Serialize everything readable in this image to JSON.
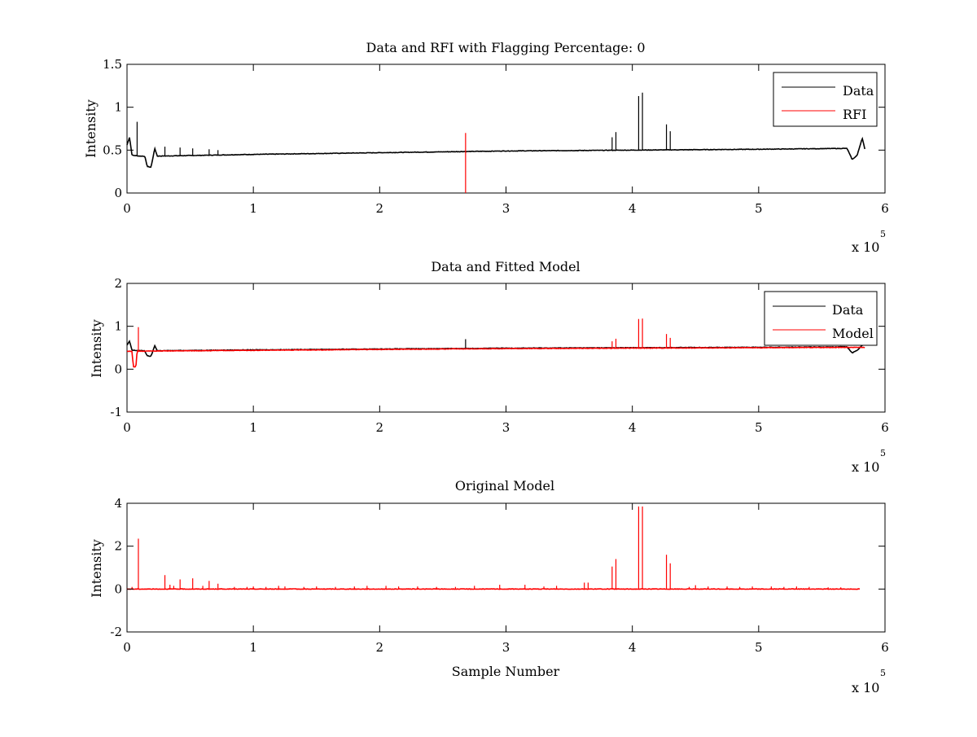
{
  "colors": {
    "data": "#000000",
    "rfi": "#ff0000",
    "model": "#ff0000"
  },
  "chart_data": [
    {
      "type": "line",
      "title": "Data and RFI with Flagging Percentage: 0",
      "xlabel": "",
      "ylabel": "Intensity",
      "xlim": [
        0,
        6
      ],
      "ylim": [
        0,
        1.5
      ],
      "x_multiplier": "x 10",
      "x_multiplier_exp": "5",
      "xticks": [
        "0",
        "1",
        "2",
        "3",
        "4",
        "5",
        "6"
      ],
      "yticks": [
        "0",
        "0.5",
        "1",
        "1.5"
      ],
      "grid": false,
      "legend_position": "top-right",
      "legend": [
        "Data",
        "RFI"
      ],
      "series": [
        {
          "name": "Data",
          "color": "#000000",
          "baseline": [
            [
              0,
              0.56
            ],
            [
              0.02,
              0.65
            ],
            [
              0.04,
              0.44
            ],
            [
              0.1,
              0.43
            ],
            [
              0.14,
              0.43
            ],
            [
              0.16,
              0.31
            ],
            [
              0.19,
              0.3
            ],
            [
              0.22,
              0.52
            ],
            [
              0.24,
              0.43
            ],
            [
              1,
              0.45
            ],
            [
              2,
              0.47
            ],
            [
              3,
              0.49
            ],
            [
              4,
              0.5
            ],
            [
              5,
              0.51
            ],
            [
              5.7,
              0.52
            ],
            [
              5.74,
              0.39
            ],
            [
              5.78,
              0.44
            ],
            [
              5.82,
              0.64
            ],
            [
              5.84,
              0.51
            ]
          ],
          "spikes": [
            [
              0.08,
              0.83
            ],
            [
              0.3,
              0.54
            ],
            [
              0.42,
              0.53
            ],
            [
              0.52,
              0.52
            ],
            [
              0.65,
              0.51
            ],
            [
              0.72,
              0.5
            ],
            [
              3.84,
              0.65
            ],
            [
              3.87,
              0.71
            ],
            [
              4.05,
              1.13
            ],
            [
              4.08,
              1.17
            ],
            [
              4.27,
              0.8
            ],
            [
              4.3,
              0.72
            ]
          ]
        },
        {
          "name": "RFI",
          "color": "#ff0000",
          "spikes": [
            [
              2.68,
              0.7
            ]
          ]
        }
      ]
    },
    {
      "type": "line",
      "title": "Data and Fitted Model",
      "xlabel": "",
      "ylabel": "Intensity",
      "xlim": [
        0,
        6
      ],
      "ylim": [
        -1,
        2
      ],
      "x_multiplier": "x 10",
      "x_multiplier_exp": "5",
      "xticks": [
        "0",
        "1",
        "2",
        "3",
        "4",
        "5",
        "6"
      ],
      "yticks": [
        "-1",
        "0",
        "1",
        "2"
      ],
      "grid": false,
      "legend_position": "top-right",
      "legend": [
        "Data",
        "Model"
      ],
      "series": [
        {
          "name": "Data",
          "color": "#000000",
          "baseline": [
            [
              0,
              0.56
            ],
            [
              0.02,
              0.65
            ],
            [
              0.04,
              0.44
            ],
            [
              0.14,
              0.43
            ],
            [
              0.16,
              0.31
            ],
            [
              0.19,
              0.3
            ],
            [
              0.22,
              0.55
            ],
            [
              0.24,
              0.43
            ],
            [
              1,
              0.45
            ],
            [
              2,
              0.47
            ],
            [
              3,
              0.49
            ],
            [
              4,
              0.5
            ],
            [
              5,
              0.51
            ],
            [
              5.7,
              0.52
            ],
            [
              5.74,
              0.38
            ],
            [
              5.78,
              0.44
            ],
            [
              5.82,
              0.56
            ]
          ],
          "spikes": [
            [
              2.68,
              0.7
            ]
          ]
        },
        {
          "name": "Model",
          "color": "#ff0000",
          "baseline": [
            [
              0,
              0.42
            ],
            [
              0.04,
              0.42
            ],
            [
              0.05,
              0.05
            ],
            [
              0.07,
              0.05
            ],
            [
              0.08,
              0.42
            ],
            [
              1,
              0.44
            ],
            [
              2,
              0.46
            ],
            [
              3,
              0.48
            ],
            [
              4,
              0.49
            ],
            [
              5,
              0.5
            ],
            [
              5.84,
              0.51
            ]
          ],
          "spikes": [
            [
              0.09,
              0.98
            ],
            [
              3.84,
              0.65
            ],
            [
              3.87,
              0.71
            ],
            [
              4.05,
              1.17
            ],
            [
              4.08,
              1.18
            ],
            [
              4.27,
              0.82
            ],
            [
              4.3,
              0.73
            ]
          ]
        }
      ]
    },
    {
      "type": "line",
      "title": "Original Model",
      "xlabel": "Sample Number",
      "ylabel": "Intensity",
      "xlim": [
        0,
        6
      ],
      "ylim": [
        -2,
        4
      ],
      "x_multiplier": "x 10",
      "x_multiplier_exp": "5",
      "xticks": [
        "0",
        "1",
        "2",
        "3",
        "4",
        "5",
        "6"
      ],
      "yticks": [
        "-2",
        "0",
        "2",
        "4"
      ],
      "grid": false,
      "legend_position": "none",
      "legend": [],
      "series": [
        {
          "name": "Model",
          "color": "#ff0000",
          "baseline": [
            [
              0,
              0
            ],
            [
              5.8,
              0
            ]
          ],
          "spikes": [
            [
              0.04,
              0.1
            ],
            [
              0.09,
              2.35
            ],
            [
              0.3,
              0.65
            ],
            [
              0.34,
              0.2
            ],
            [
              0.37,
              0.15
            ],
            [
              0.42,
              0.45
            ],
            [
              0.52,
              0.5
            ],
            [
              0.6,
              0.15
            ],
            [
              0.65,
              0.38
            ],
            [
              0.72,
              0.25
            ],
            [
              0.85,
              0.1
            ],
            [
              0.95,
              0.1
            ],
            [
              1.0,
              0.12
            ],
            [
              1.1,
              0.1
            ],
            [
              1.2,
              0.15
            ],
            [
              1.25,
              0.12
            ],
            [
              1.4,
              0.1
            ],
            [
              1.5,
              0.12
            ],
            [
              1.65,
              0.1
            ],
            [
              1.8,
              0.12
            ],
            [
              1.9,
              0.15
            ],
            [
              2.05,
              0.15
            ],
            [
              2.15,
              0.12
            ],
            [
              2.3,
              0.12
            ],
            [
              2.45,
              0.1
            ],
            [
              2.6,
              0.1
            ],
            [
              2.75,
              0.15
            ],
            [
              2.95,
              0.2
            ],
            [
              3.15,
              0.2
            ],
            [
              3.3,
              0.12
            ],
            [
              3.4,
              0.15
            ],
            [
              3.62,
              0.3
            ],
            [
              3.65,
              0.3
            ],
            [
              3.84,
              1.05
            ],
            [
              3.87,
              1.4
            ],
            [
              4.05,
              3.85
            ],
            [
              4.08,
              3.85
            ],
            [
              4.27,
              1.6
            ],
            [
              4.3,
              1.2
            ],
            [
              4.45,
              0.1
            ],
            [
              4.5,
              0.18
            ],
            [
              4.6,
              0.12
            ],
            [
              4.75,
              0.12
            ],
            [
              4.85,
              0.1
            ],
            [
              4.95,
              0.12
            ],
            [
              5.1,
              0.12
            ],
            [
              5.2,
              0.1
            ],
            [
              5.3,
              0.12
            ],
            [
              5.4,
              0.1
            ],
            [
              5.55,
              0.08
            ],
            [
              5.65,
              0.08
            ]
          ]
        }
      ]
    }
  ]
}
